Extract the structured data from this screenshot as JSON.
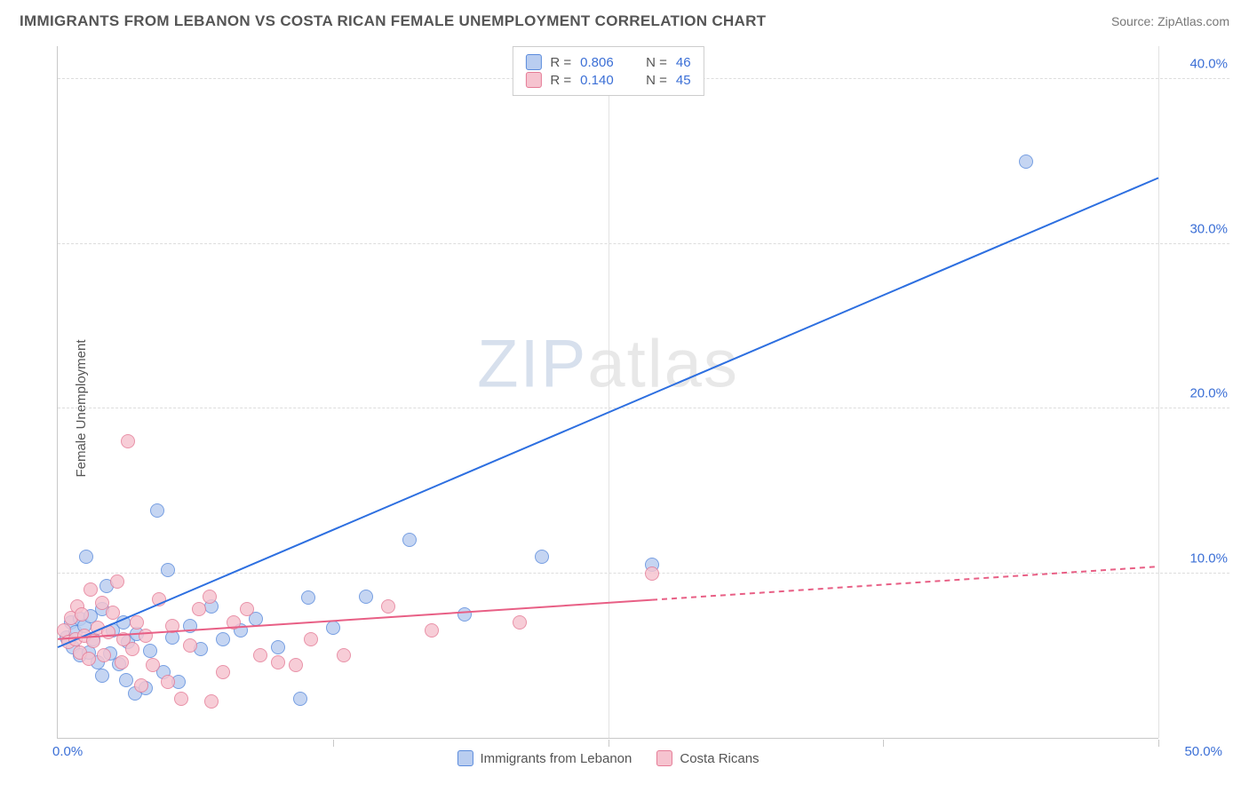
{
  "header": {
    "title": "IMMIGRANTS FROM LEBANON VS COSTA RICAN FEMALE UNEMPLOYMENT CORRELATION CHART",
    "source_label": "Source: ZipAtlas.com"
  },
  "chart": {
    "type": "scatter",
    "ylabel": "Female Unemployment",
    "xlim": [
      0,
      50
    ],
    "ylim": [
      0,
      42
    ],
    "xticks_major": [
      25,
      50
    ],
    "xticks_minor": [
      12.5,
      37.5
    ],
    "xtick_labels": {
      "0": "0.0%",
      "50": "50.0%"
    },
    "yticks": [
      10,
      20,
      30,
      40
    ],
    "ytick_labels": {
      "10": "10.0%",
      "20": "20.0%",
      "30": "30.0%",
      "40": "40.0%"
    },
    "grid_color": "#dddddd",
    "axis_color": "#c8c8c8",
    "background_color": "#ffffff",
    "marker_radius": 8,
    "marker_border_width": 1.5,
    "line_width": 2,
    "dash_pattern": "6,5",
    "watermark": "ZIPatlas",
    "series": [
      {
        "id": "lebanon",
        "legend_label": "Immigrants from Lebanon",
        "fill": "#b9cdf0",
        "stroke": "#5a8bdc",
        "line_color": "#2d6fe0",
        "R": "0.806",
        "N": "46",
        "trend": {
          "x1": 0,
          "y1": 5.5,
          "x2": 50,
          "y2": 34.0,
          "dashed_from_x": null
        },
        "points": [
          [
            0.4,
            6.1
          ],
          [
            0.6,
            7.0
          ],
          [
            0.7,
            5.5
          ],
          [
            0.8,
            6.4
          ],
          [
            1.0,
            7.2
          ],
          [
            1.0,
            5.0
          ],
          [
            1.2,
            6.8
          ],
          [
            1.3,
            11.0
          ],
          [
            1.4,
            5.2
          ],
          [
            1.5,
            7.4
          ],
          [
            1.6,
            6.0
          ],
          [
            1.8,
            4.6
          ],
          [
            2.0,
            7.8
          ],
          [
            2.0,
            3.8
          ],
          [
            2.2,
            9.2
          ],
          [
            2.4,
            5.1
          ],
          [
            2.5,
            6.5
          ],
          [
            2.8,
            4.5
          ],
          [
            3.0,
            7.0
          ],
          [
            3.1,
            3.5
          ],
          [
            3.2,
            5.8
          ],
          [
            3.5,
            2.7
          ],
          [
            3.6,
            6.3
          ],
          [
            4.0,
            3.0
          ],
          [
            4.2,
            5.3
          ],
          [
            4.5,
            13.8
          ],
          [
            4.8,
            4.0
          ],
          [
            5.0,
            10.2
          ],
          [
            5.2,
            6.1
          ],
          [
            5.5,
            3.4
          ],
          [
            6.0,
            6.8
          ],
          [
            6.5,
            5.4
          ],
          [
            7.0,
            8.0
          ],
          [
            7.5,
            6.0
          ],
          [
            8.3,
            6.5
          ],
          [
            9.0,
            7.2
          ],
          [
            10.0,
            5.5
          ],
          [
            11.0,
            2.4
          ],
          [
            11.4,
            8.5
          ],
          [
            12.5,
            6.7
          ],
          [
            14.0,
            8.6
          ],
          [
            16.0,
            12.0
          ],
          [
            18.5,
            7.5
          ],
          [
            22.0,
            11.0
          ],
          [
            27.0,
            10.5
          ],
          [
            44.0,
            35.0
          ]
        ]
      },
      {
        "id": "costarican",
        "legend_label": "Costa Ricans",
        "fill": "#f6c3cf",
        "stroke": "#e57b96",
        "line_color": "#e85f85",
        "R": "0.140",
        "N": "45",
        "trend": {
          "x1": 0,
          "y1": 6.0,
          "x2": 50,
          "y2": 10.4,
          "dashed_from_x": 27
        },
        "points": [
          [
            0.3,
            6.5
          ],
          [
            0.5,
            5.8
          ],
          [
            0.6,
            7.3
          ],
          [
            0.8,
            6.0
          ],
          [
            0.9,
            8.0
          ],
          [
            1.0,
            5.2
          ],
          [
            1.1,
            7.5
          ],
          [
            1.2,
            6.2
          ],
          [
            1.4,
            4.8
          ],
          [
            1.5,
            9.0
          ],
          [
            1.6,
            5.9
          ],
          [
            1.8,
            6.7
          ],
          [
            2.0,
            8.2
          ],
          [
            2.1,
            5.0
          ],
          [
            2.3,
            6.4
          ],
          [
            2.5,
            7.6
          ],
          [
            2.7,
            9.5
          ],
          [
            2.9,
            4.6
          ],
          [
            3.0,
            6.0
          ],
          [
            3.2,
            18.0
          ],
          [
            3.4,
            5.4
          ],
          [
            3.6,
            7.0
          ],
          [
            3.8,
            3.2
          ],
          [
            4.0,
            6.2
          ],
          [
            4.3,
            4.4
          ],
          [
            4.6,
            8.4
          ],
          [
            5.0,
            3.4
          ],
          [
            5.2,
            6.8
          ],
          [
            5.6,
            2.4
          ],
          [
            6.0,
            5.6
          ],
          [
            6.4,
            7.8
          ],
          [
            6.9,
            8.6
          ],
          [
            7.0,
            2.2
          ],
          [
            7.5,
            4.0
          ],
          [
            8.0,
            7.0
          ],
          [
            8.6,
            7.8
          ],
          [
            9.2,
            5.0
          ],
          [
            10.0,
            4.6
          ],
          [
            10.8,
            4.4
          ],
          [
            11.5,
            6.0
          ],
          [
            13.0,
            5.0
          ],
          [
            15.0,
            8.0
          ],
          [
            17.0,
            6.5
          ],
          [
            21.0,
            7.0
          ],
          [
            27.0,
            10.0
          ]
        ]
      }
    ]
  }
}
